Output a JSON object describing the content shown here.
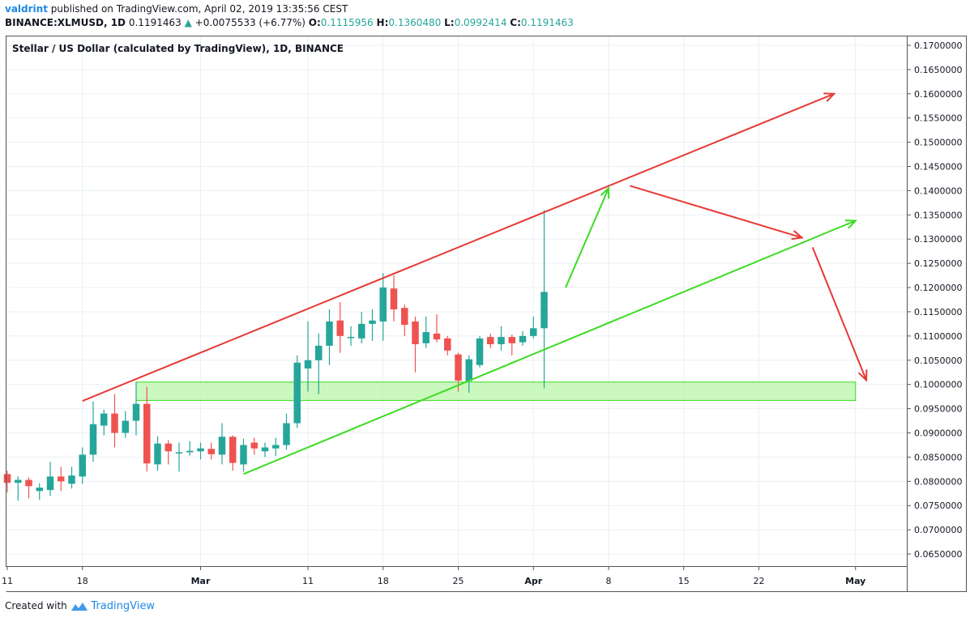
{
  "header": {
    "author": "valdrint",
    "published_text": "published on TradingView.com, April 02, 2019 13:35:56 CEST",
    "symbol_line": "BINANCE:XLMUSD, 1D",
    "last_price": "0.1191463",
    "change_arrow": "▲",
    "change": "+0.0075533 (+6.77%)",
    "open_label": "O:",
    "open": "0.1115956",
    "high_label": "H:",
    "high": "0.1360480",
    "low_label": "L:",
    "low": "0.0992414",
    "close_label": "C:",
    "close": "0.1191463"
  },
  "footer": {
    "created_with": "Created with",
    "brand": "TradingView"
  },
  "colors": {
    "up": "#26a69a",
    "down": "#ef5350",
    "resistance": "#e53935",
    "support": "#3ddc23",
    "zone_fill": "#b9f6a8",
    "grid": "#e9f0f6",
    "axis": "#555555"
  },
  "chart_data": {
    "type": "candlestick",
    "title": "Stellar / US Dollar (calculated by TradingView), 1D, BINANCE",
    "x_ticks": [
      {
        "label": "11",
        "day": 0
      },
      {
        "label": "18",
        "day": 7
      },
      {
        "label": "Mar",
        "day": 18
      },
      {
        "label": "11",
        "day": 28
      },
      {
        "label": "18",
        "day": 35
      },
      {
        "label": "25",
        "day": 42
      },
      {
        "label": "Apr",
        "day": 49
      },
      {
        "label": "8",
        "day": 56
      },
      {
        "label": "15",
        "day": 63
      },
      {
        "label": "22",
        "day": 70
      },
      {
        "label": "May",
        "day": 79
      }
    ],
    "y_ticks": [
      "0.1700000",
      "0.1650000",
      "0.1600000",
      "0.1550000",
      "0.1500000",
      "0.1450000",
      "0.1400000",
      "0.1350000",
      "0.1300000",
      "0.1250000",
      "0.1200000",
      "0.1150000",
      "0.1100000",
      "0.1050000",
      "0.1000000",
      "0.0950000",
      "0.0900000",
      "0.0850000",
      "0.0800000",
      "0.0750000",
      "0.0700000",
      "0.0650000"
    ],
    "ylim": [
      0.0625,
      0.172
    ],
    "candles": [
      {
        "day": 0,
        "o": 0.0815,
        "h": 0.0822,
        "l": 0.0777,
        "c": 0.0797
      },
      {
        "day": 1,
        "o": 0.0797,
        "h": 0.081,
        "l": 0.076,
        "c": 0.0803
      },
      {
        "day": 2,
        "o": 0.0803,
        "h": 0.0808,
        "l": 0.0765,
        "c": 0.079
      },
      {
        "day": 3,
        "o": 0.078,
        "h": 0.0796,
        "l": 0.0762,
        "c": 0.0787
      },
      {
        "day": 4,
        "o": 0.0782,
        "h": 0.084,
        "l": 0.077,
        "c": 0.081
      },
      {
        "day": 5,
        "o": 0.081,
        "h": 0.083,
        "l": 0.078,
        "c": 0.08
      },
      {
        "day": 6,
        "o": 0.0795,
        "h": 0.083,
        "l": 0.0785,
        "c": 0.0812
      },
      {
        "day": 7,
        "o": 0.081,
        "h": 0.087,
        "l": 0.0795,
        "c": 0.0855
      },
      {
        "day": 8,
        "o": 0.0855,
        "h": 0.0965,
        "l": 0.084,
        "c": 0.0918
      },
      {
        "day": 9,
        "o": 0.0915,
        "h": 0.0948,
        "l": 0.0895,
        "c": 0.094
      },
      {
        "day": 10,
        "o": 0.094,
        "h": 0.098,
        "l": 0.087,
        "c": 0.09
      },
      {
        "day": 11,
        "o": 0.09,
        "h": 0.0945,
        "l": 0.089,
        "c": 0.0925
      },
      {
        "day": 12,
        "o": 0.0925,
        "h": 0.1005,
        "l": 0.0895,
        "c": 0.096
      },
      {
        "day": 13,
        "o": 0.096,
        "h": 0.0995,
        "l": 0.082,
        "c": 0.0837
      },
      {
        "day": 14,
        "o": 0.0835,
        "h": 0.0893,
        "l": 0.0822,
        "c": 0.0878
      },
      {
        "day": 15,
        "o": 0.0878,
        "h": 0.0885,
        "l": 0.0835,
        "c": 0.0862
      },
      {
        "day": 16,
        "o": 0.0858,
        "h": 0.088,
        "l": 0.082,
        "c": 0.086
      },
      {
        "day": 17,
        "o": 0.086,
        "h": 0.0883,
        "l": 0.0853,
        "c": 0.0863
      },
      {
        "day": 18,
        "o": 0.0862,
        "h": 0.088,
        "l": 0.0845,
        "c": 0.0868
      },
      {
        "day": 19,
        "o": 0.0867,
        "h": 0.088,
        "l": 0.0845,
        "c": 0.0856
      },
      {
        "day": 20,
        "o": 0.0855,
        "h": 0.092,
        "l": 0.0835,
        "c": 0.0892
      },
      {
        "day": 21,
        "o": 0.0892,
        "h": 0.0895,
        "l": 0.0822,
        "c": 0.0838
      },
      {
        "day": 22,
        "o": 0.0835,
        "h": 0.0888,
        "l": 0.082,
        "c": 0.0875
      },
      {
        "day": 23,
        "o": 0.088,
        "h": 0.089,
        "l": 0.0855,
        "c": 0.0868
      },
      {
        "day": 24,
        "o": 0.0862,
        "h": 0.088,
        "l": 0.085,
        "c": 0.087
      },
      {
        "day": 25,
        "o": 0.0868,
        "h": 0.089,
        "l": 0.0852,
        "c": 0.0875
      },
      {
        "day": 26,
        "o": 0.0875,
        "h": 0.094,
        "l": 0.0865,
        "c": 0.092
      },
      {
        "day": 27,
        "o": 0.092,
        "h": 0.106,
        "l": 0.091,
        "c": 0.1045
      },
      {
        "day": 28,
        "o": 0.1033,
        "h": 0.113,
        "l": 0.0985,
        "c": 0.105
      },
      {
        "day": 29,
        "o": 0.105,
        "h": 0.1105,
        "l": 0.098,
        "c": 0.108
      },
      {
        "day": 30,
        "o": 0.108,
        "h": 0.1155,
        "l": 0.104,
        "c": 0.113
      },
      {
        "day": 31,
        "o": 0.1132,
        "h": 0.117,
        "l": 0.1065,
        "c": 0.11
      },
      {
        "day": 32,
        "o": 0.1096,
        "h": 0.112,
        "l": 0.108,
        "c": 0.1098
      },
      {
        "day": 33,
        "o": 0.1095,
        "h": 0.115,
        "l": 0.1085,
        "c": 0.1125
      },
      {
        "day": 34,
        "o": 0.1125,
        "h": 0.1155,
        "l": 0.109,
        "c": 0.1132
      },
      {
        "day": 35,
        "o": 0.113,
        "h": 0.123,
        "l": 0.109,
        "c": 0.12
      },
      {
        "day": 36,
        "o": 0.1198,
        "h": 0.1225,
        "l": 0.113,
        "c": 0.1155
      },
      {
        "day": 37,
        "o": 0.1158,
        "h": 0.1165,
        "l": 0.11,
        "c": 0.1123
      },
      {
        "day": 38,
        "o": 0.113,
        "h": 0.114,
        "l": 0.1025,
        "c": 0.1083
      },
      {
        "day": 39,
        "o": 0.1085,
        "h": 0.114,
        "l": 0.1075,
        "c": 0.1108
      },
      {
        "day": 40,
        "o": 0.1105,
        "h": 0.1145,
        "l": 0.1087,
        "c": 0.1093
      },
      {
        "day": 41,
        "o": 0.1095,
        "h": 0.11,
        "l": 0.106,
        "c": 0.107
      },
      {
        "day": 42,
        "o": 0.1062,
        "h": 0.1065,
        "l": 0.0985,
        "c": 0.1008
      },
      {
        "day": 43,
        "o": 0.1007,
        "h": 0.106,
        "l": 0.0983,
        "c": 0.1052
      },
      {
        "day": 44,
        "o": 0.104,
        "h": 0.11,
        "l": 0.1035,
        "c": 0.1095
      },
      {
        "day": 45,
        "o": 0.1098,
        "h": 0.1105,
        "l": 0.1075,
        "c": 0.1083
      },
      {
        "day": 46,
        "o": 0.1083,
        "h": 0.112,
        "l": 0.107,
        "c": 0.1098
      },
      {
        "day": 47,
        "o": 0.1098,
        "h": 0.1103,
        "l": 0.106,
        "c": 0.1085
      },
      {
        "day": 48,
        "o": 0.1087,
        "h": 0.111,
        "l": 0.108,
        "c": 0.11
      },
      {
        "day": 49,
        "o": 0.11,
        "h": 0.114,
        "l": 0.1095,
        "c": 0.1116
      },
      {
        "day": 50,
        "o": 0.1116,
        "h": 0.136,
        "l": 0.0992,
        "c": 0.1191
      }
    ],
    "annotations": {
      "resistance_line": {
        "from": [
          7,
          0.0966
        ],
        "to": [
          77,
          0.16
        ],
        "arrow": true
      },
      "support_line": {
        "from": [
          22,
          0.0815
        ],
        "to": [
          79,
          0.1338
        ],
        "arrow": true
      },
      "support_zone": {
        "day_from": 12,
        "day_to": 79,
        "y_from": 0.0967,
        "y_to": 0.1005
      },
      "green_projection": {
        "from": [
          52,
          0.12
        ],
        "to": [
          56,
          0.1405
        ]
      },
      "red_projection_1": {
        "from": [
          58,
          0.141
        ],
        "to": [
          74,
          0.1303
        ]
      },
      "red_projection_2": {
        "from": [
          75,
          0.1283
        ],
        "to": [
          80,
          0.1009
        ]
      }
    }
  }
}
